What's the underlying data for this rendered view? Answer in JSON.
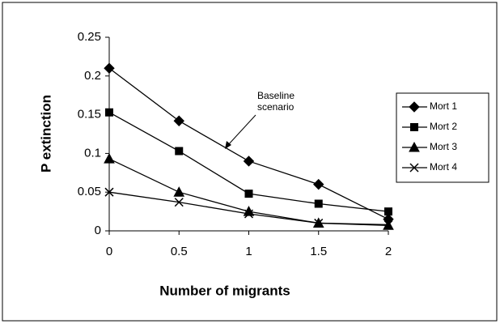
{
  "chart_data": {
    "type": "line",
    "x_label": "Number of migrants",
    "y_label": "P extinction",
    "annotation": [
      "Baseline",
      "scenario"
    ],
    "x": [
      0,
      0.5,
      1,
      1.5,
      2
    ],
    "xlim": [
      0,
      2
    ],
    "xticks": [
      0,
      0.5,
      1,
      1.5,
      2
    ],
    "ylim": [
      0,
      0.25
    ],
    "yticks": [
      0,
      0.05,
      0.1,
      0.15,
      0.2,
      0.25
    ],
    "legend": "right",
    "series": [
      {
        "name": "Mort 1",
        "color": "#000000",
        "marker": "diamond",
        "values": [
          0.21,
          0.142,
          0.09,
          0.06,
          0.015
        ]
      },
      {
        "name": "Mort 2",
        "color": "#000000",
        "marker": "square",
        "values": [
          0.153,
          0.103,
          0.048,
          0.035,
          0.025
        ]
      },
      {
        "name": "Mort 3",
        "color": "#000000",
        "marker": "triangle",
        "values": [
          0.093,
          0.05,
          0.025,
          0.01,
          0.007
        ]
      },
      {
        "name": "Mort 4",
        "color": "#000000",
        "marker": "x",
        "values": [
          0.05,
          0.037,
          0.022,
          0.01,
          0.008
        ]
      }
    ]
  }
}
